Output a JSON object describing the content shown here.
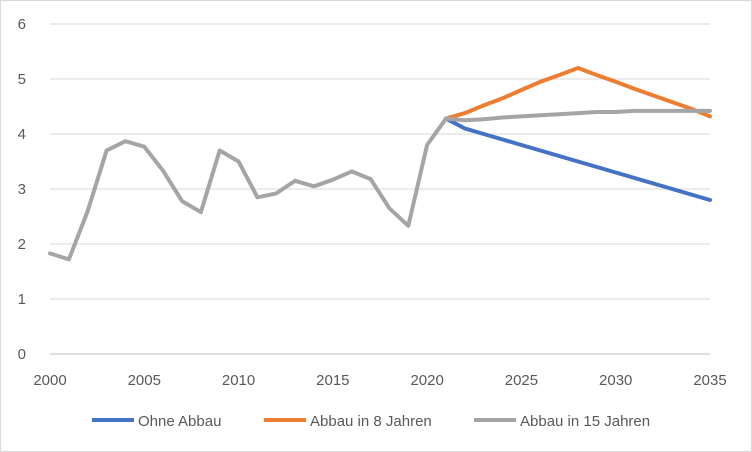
{
  "chart_data": {
    "type": "line",
    "title": "",
    "xlabel": "",
    "ylabel": "",
    "xlim": [
      2000,
      2035
    ],
    "ylim": [
      0,
      6
    ],
    "x_ticks": [
      2000,
      2005,
      2010,
      2015,
      2020,
      2025,
      2030,
      2035
    ],
    "y_ticks": [
      0,
      1,
      2,
      3,
      4,
      5,
      6
    ],
    "grid": "horizontal",
    "legend_position": "bottom",
    "series": [
      {
        "name": "Ohne Abbau",
        "color": "#4472C4",
        "points": [
          [
            2021,
            4.28
          ],
          [
            2022,
            4.1
          ],
          [
            2023,
            4.0
          ],
          [
            2024,
            3.9
          ],
          [
            2025,
            3.8
          ],
          [
            2026,
            3.7
          ],
          [
            2027,
            3.6
          ],
          [
            2028,
            3.5
          ],
          [
            2029,
            3.4
          ],
          [
            2030,
            3.3
          ],
          [
            2031,
            3.2
          ],
          [
            2032,
            3.1
          ],
          [
            2033,
            3.0
          ],
          [
            2034,
            2.9
          ],
          [
            2035,
            2.8
          ]
        ]
      },
      {
        "name": "Abbau in 8 Jahren",
        "color": "#ED7D31",
        "points": [
          [
            2021,
            4.28
          ],
          [
            2022,
            4.38
          ],
          [
            2023,
            4.52
          ],
          [
            2024,
            4.65
          ],
          [
            2025,
            4.8
          ],
          [
            2026,
            4.95
          ],
          [
            2027,
            5.07
          ],
          [
            2028,
            5.2
          ],
          [
            2029,
            5.07
          ],
          [
            2030,
            4.95
          ],
          [
            2031,
            4.82
          ],
          [
            2032,
            4.7
          ],
          [
            2033,
            4.58
          ],
          [
            2034,
            4.46
          ],
          [
            2035,
            4.32
          ]
        ]
      },
      {
        "name": "Abbau in 15 Jahren",
        "color": "#A5A5A5",
        "points": [
          [
            2000,
            1.83
          ],
          [
            2001,
            1.72
          ],
          [
            2002,
            2.6
          ],
          [
            2003,
            3.7
          ],
          [
            2004,
            3.87
          ],
          [
            2005,
            3.77
          ],
          [
            2006,
            3.33
          ],
          [
            2007,
            2.78
          ],
          [
            2008,
            2.58
          ],
          [
            2009,
            3.7
          ],
          [
            2010,
            3.5
          ],
          [
            2011,
            2.85
          ],
          [
            2012,
            2.92
          ],
          [
            2013,
            3.15
          ],
          [
            2014,
            3.05
          ],
          [
            2015,
            3.17
          ],
          [
            2016,
            3.32
          ],
          [
            2017,
            3.18
          ],
          [
            2018,
            2.65
          ],
          [
            2019,
            2.33
          ],
          [
            2020,
            3.8
          ],
          [
            2021,
            4.28
          ],
          [
            2022,
            4.25
          ],
          [
            2023,
            4.27
          ],
          [
            2024,
            4.3
          ],
          [
            2025,
            4.32
          ],
          [
            2026,
            4.34
          ],
          [
            2027,
            4.36
          ],
          [
            2028,
            4.38
          ],
          [
            2029,
            4.4
          ],
          [
            2030,
            4.4
          ],
          [
            2031,
            4.42
          ],
          [
            2032,
            4.42
          ],
          [
            2033,
            4.42
          ],
          [
            2034,
            4.42
          ],
          [
            2035,
            4.42
          ]
        ]
      }
    ]
  }
}
